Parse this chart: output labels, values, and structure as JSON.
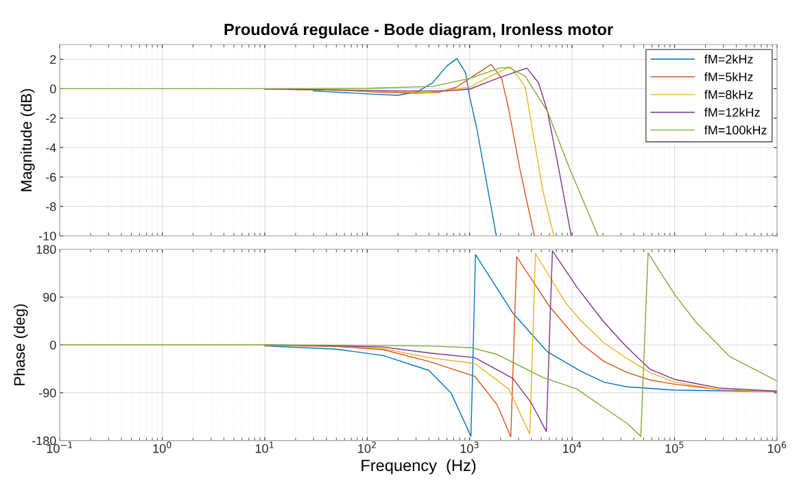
{
  "chart_data": [
    {
      "type": "line",
      "title": "Proudová regulace - Bode diagram, Ironless motor",
      "ylabel": "Magnitude (dB)",
      "log": "x",
      "grid": true,
      "legend": "top right",
      "tick_labels": "y",
      "xlim": [
        0.1,
        1000000
      ],
      "xticks": [
        {
          "value": 0.1,
          "label": null
        },
        {
          "value": 1,
          "label": null
        },
        {
          "value": 10,
          "label": null
        },
        {
          "value": 100,
          "label": null
        },
        {
          "value": 1000,
          "label": null
        },
        {
          "value": 10000,
          "label": null
        },
        {
          "value": 100000,
          "label": null
        },
        {
          "value": 1000000,
          "label": null
        }
      ],
      "ylim": [
        -10,
        3
      ],
      "yticks": [
        -10,
        -8,
        -6,
        -4,
        -2,
        0,
        2
      ],
      "series": [
        {
          "name": "fM=2kHz",
          "color": "#0072bd",
          "x": [
            30,
            100,
            200,
            310,
            435,
            600,
            750,
            910,
            1000,
            1170,
            1510,
            1820
          ],
          "values": [
            -0.15,
            -0.35,
            -0.45,
            -0.2,
            0.4,
            1.55,
            2.05,
            1.1,
            -0.55,
            -2.65,
            -6.9,
            -10
          ]
        },
        {
          "name": "fM=5kHz",
          "color": "#d95319",
          "x": [
            10,
            50,
            150,
            300,
            490,
            740,
            1000,
            1620,
            2050,
            2390,
            3100,
            4280
          ],
          "values": [
            -0.02,
            -0.1,
            -0.25,
            -0.3,
            -0.25,
            0.1,
            0.7,
            1.65,
            0.7,
            -1.3,
            -5.5,
            -10
          ]
        },
        {
          "name": "fM=8kHz",
          "color": "#edb120",
          "x": [
            10,
            50,
            150,
            400,
            1000,
            1590,
            2500,
            3480,
            4070,
            5160,
            6630
          ],
          "values": [
            -0.02,
            -0.1,
            -0.2,
            -0.25,
            0.1,
            0.85,
            1.5,
            0.15,
            -2.65,
            -6.9,
            -10
          ]
        },
        {
          "name": "fM=12kHz",
          "color": "#7e2f8e",
          "x": [
            10,
            50,
            200,
            600,
            1000,
            1860,
            3620,
            4700,
            5750,
            7430,
            9800
          ],
          "values": [
            -0.02,
            -0.08,
            -0.15,
            -0.15,
            -0.03,
            0.7,
            1.4,
            0.4,
            -1.55,
            -5.5,
            -10
          ]
        },
        {
          "name": "fM=100kHz",
          "color": "#77ac30",
          "x": [
            0.1,
            1,
            10,
            100,
            435,
            1000,
            1960,
            2400,
            3480,
            5750,
            9550,
            17900
          ],
          "values": [
            0,
            0,
            0,
            0.03,
            0.15,
            0.7,
            1.4,
            1.45,
            0.85,
            -1.55,
            -5.5,
            -10
          ]
        }
      ]
    },
    {
      "type": "line",
      "xlabel": "Frequency  (Hz)",
      "ylabel": "Phase (deg)",
      "log": "x",
      "grid": true,
      "xlim": [
        0.1,
        1000000
      ],
      "xticks": [
        {
          "value": 0.1,
          "label": "10$^{−1}$"
        },
        {
          "value": 1,
          "label": "10$^{0}$"
        },
        {
          "value": 10,
          "label": "10$^{1}$"
        },
        {
          "value": 100,
          "label": "10$^{2}$"
        },
        {
          "value": 1000,
          "label": "10$^{3}$"
        },
        {
          "value": 10000,
          "label": "10$^{4}$"
        },
        {
          "value": 100000,
          "label": "10$^{5}$"
        },
        {
          "value": 1000000,
          "label": "10$^{6}$"
        }
      ],
      "ylim": [
        -180,
        180
      ],
      "yticks": [
        -180,
        -90,
        0,
        90,
        180
      ],
      "series": [
        {
          "color": "#0072bd",
          "x": [
            10,
            50,
            143,
            400,
            660,
            1030,
            1140,
            2640,
            5730,
            12300,
            20400,
            34500,
            100000,
            1000000
          ],
          "values": [
            -2,
            -8,
            -20,
            -48,
            -91,
            -172,
            170,
            60,
            -13,
            -50,
            -70,
            -79,
            -85,
            -88
          ]
        },
        {
          "color": "#d95319",
          "x": [
            10,
            50,
            143,
            400,
            1120,
            1860,
            2520,
            2880,
            6030,
            12300,
            20400,
            34500,
            57800,
            100000,
            270000,
            1000000
          ],
          "values": [
            -1,
            -3,
            -9,
            -31,
            -59,
            -113,
            -173,
            166,
            72,
            2,
            -31,
            -52,
            -66,
            -74,
            -84,
            -88
          ]
        },
        {
          "color": "#edb120",
          "x": [
            10,
            50,
            143,
            400,
            1120,
            2410,
            3860,
            4390,
            8730,
            12300,
            20400,
            34500,
            57800,
            100000,
            270000,
            1000000
          ],
          "values": [
            -1,
            -2,
            -7,
            -24,
            -35,
            -83,
            -168,
            172,
            78,
            45,
            4,
            -26,
            -52,
            -70,
            -84,
            -88
          ]
        },
        {
          "color": "#7e2f8e",
          "x": [
            10,
            50,
            143,
            400,
            1120,
            2640,
            3990,
            5600,
            6420,
            11200,
            20400,
            34500,
            57800,
            100000,
            270000,
            1000000
          ],
          "values": [
            0,
            -2,
            -4,
            -15,
            -24,
            -63,
            -109,
            -163,
            177,
            108,
            43,
            -5,
            -46,
            -65,
            -81,
            -87
          ]
        },
        {
          "color": "#77ac30",
          "x": [
            0.1,
            1,
            10,
            100,
            400,
            1030,
            1860,
            5170,
            11100,
            20400,
            34500,
            46800,
            55100,
            100000,
            161000,
            345000,
            1000000
          ],
          "values": [
            0,
            0,
            0,
            -1,
            -2,
            -5,
            -18,
            -61,
            -83,
            -118,
            -148,
            -172,
            173,
            95,
            43,
            -22,
            -68
          ]
        }
      ]
    }
  ]
}
